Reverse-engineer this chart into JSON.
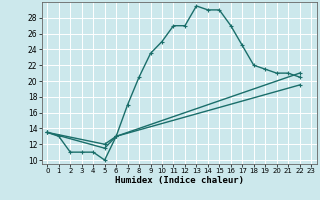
{
  "xlabel": "Humidex (Indice chaleur)",
  "bg_color": "#cce8ec",
  "grid_color": "#ffffff",
  "line_color": "#1a6e6a",
  "xlim": [
    -0.5,
    23.5
  ],
  "ylim": [
    9.5,
    30.0
  ],
  "xticks": [
    0,
    1,
    2,
    3,
    4,
    5,
    6,
    7,
    8,
    9,
    10,
    11,
    12,
    13,
    14,
    15,
    16,
    17,
    18,
    19,
    20,
    21,
    22,
    23
  ],
  "yticks": [
    10,
    12,
    14,
    16,
    18,
    20,
    22,
    24,
    26,
    28
  ],
  "line1_x": [
    0,
    1,
    2,
    3,
    4,
    5,
    6,
    7,
    8,
    9,
    10,
    11,
    12,
    13,
    14,
    15,
    16,
    17,
    18,
    19,
    20,
    21,
    22
  ],
  "line1_y": [
    13.5,
    13.0,
    11.0,
    11.0,
    11.0,
    10.0,
    13.0,
    17.0,
    20.5,
    23.5,
    25.0,
    27.0,
    27.0,
    29.5,
    29.0,
    29.0,
    27.0,
    24.5,
    22.0,
    21.5,
    21.0,
    21.0,
    20.5
  ],
  "line2_x": [
    0,
    5,
    6,
    22
  ],
  "line2_y": [
    13.5,
    11.5,
    13.0,
    19.5
  ],
  "line3_x": [
    0,
    5,
    6,
    22
  ],
  "line3_y": [
    13.5,
    12.0,
    13.0,
    21.0
  ],
  "marker_size": 2.5,
  "line_width": 1.0
}
